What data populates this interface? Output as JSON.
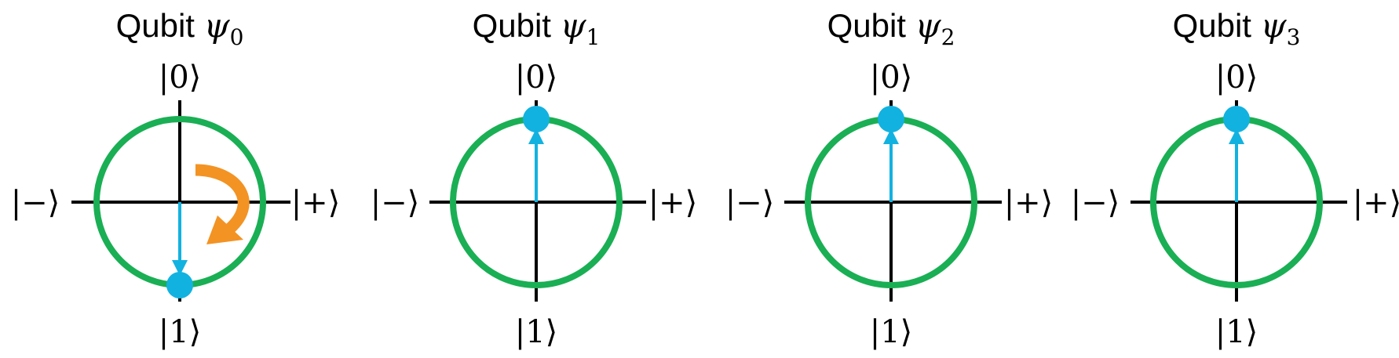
{
  "colors": {
    "circle": "#1aaf54",
    "axes": "#000000",
    "state": "#12b2e0",
    "rotation_arrow": "#f39323"
  },
  "rotation_arrow_icon": "curved-arrow-icon",
  "qubits": [
    {
      "title_word": "Qubit",
      "symbol": "ψ",
      "subscript": "0",
      "labels": {
        "top": "|0⟩",
        "bottom": "|1⟩",
        "left": "|−⟩",
        "right": "|+⟩"
      },
      "state": "|1⟩",
      "state_angle_deg": 180,
      "rotation_arrow": true
    },
    {
      "title_word": "Qubit",
      "symbol": "ψ",
      "subscript": "1",
      "labels": {
        "top": "|0⟩",
        "bottom": "|1⟩",
        "left": "|−⟩",
        "right": "|+⟩"
      },
      "state": "|0⟩",
      "state_angle_deg": 0,
      "rotation_arrow": false
    },
    {
      "title_word": "Qubit",
      "symbol": "ψ",
      "subscript": "2",
      "labels": {
        "top": "|0⟩",
        "bottom": "|1⟩",
        "left": "|−⟩",
        "right": "|+⟩"
      },
      "state": "|0⟩",
      "state_angle_deg": 0,
      "rotation_arrow": false
    },
    {
      "title_word": "Qubit",
      "symbol": "ψ",
      "subscript": "3",
      "labels": {
        "top": "|0⟩",
        "bottom": "|1⟩",
        "left": "|−⟩",
        "right": "|+⟩"
      },
      "state": "|0⟩",
      "state_angle_deg": 0,
      "rotation_arrow": false
    }
  ]
}
